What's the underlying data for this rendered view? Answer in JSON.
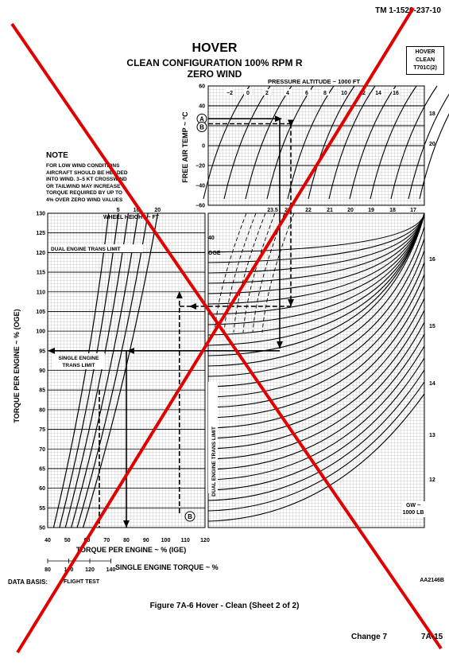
{
  "document": {
    "number": "TM 1-1520-237-10",
    "title": "HOVER",
    "subtitle": "CLEAN CONFIGURATION  100% RPM R",
    "subtitle2": "ZERO WIND",
    "tab_lines": [
      "HOVER",
      "CLEAN",
      "T701C(2)"
    ],
    "note_heading": "NOTE",
    "note_lines": [
      "FOR LOW WIND CONDITIONS",
      "AIRCRAFT SHOULD BE HEADED",
      "INTO WIND. 3–5 KT CROSSWIND",
      "OR TAILWIND MAY INCREASE",
      "TORQUE REQUIRED BY UP TO",
      "4% OVER ZERO WIND VALUES"
    ],
    "data_basis_label": "DATA BASIS:",
    "data_basis_value": "FLIGHT TEST",
    "figure_id": "AA2146B",
    "caption": "Figure 7A-6 Hover - Clean (Sheet 2 of 2)",
    "change": "Change 7",
    "page": "7A-15"
  },
  "chart_data": [
    {
      "type": "line",
      "panel": "free-air-temperature",
      "title": "PRESSURE ALTITUDE ~ 1000 FT",
      "ylabel": "FREE AIR TEMP ~ °C",
      "ylim": [
        -60,
        60
      ],
      "y_ticks": [
        "60",
        "40",
        "20",
        "0",
        "−20",
        "−40",
        "−60"
      ],
      "series_labels": [
        "−2",
        "0",
        "2",
        "4",
        "6",
        "8",
        "10",
        "12",
        "14",
        "16"
      ],
      "right_labels": [
        "18",
        "20"
      ],
      "bottom_scale_labels": [
        "23.5",
        "23",
        "22",
        "21",
        "20",
        "19",
        "18",
        "17"
      ],
      "markers": [
        "A",
        "B"
      ]
    },
    {
      "type": "line",
      "panel": "gross-weight",
      "ylabel": "GW ~",
      "ylabel2": "1000 LB",
      "right_labels": [
        "16",
        "15",
        "14",
        "13",
        "12"
      ],
      "vertical_label": "DUAL ENGINE TRANS LIMIT"
    },
    {
      "type": "line",
      "panel": "torque",
      "xlabel": "TORQUE PER ENGINE ~ % (IGE)",
      "xlabel2": "SINGLE ENGINE TORQUE ~ %",
      "ylabel": "TORQUE PER ENGINE ~ % (OGE)",
      "xlim": [
        40,
        120
      ],
      "ylim": [
        50,
        130
      ],
      "x_ticks": [
        "40",
        "50",
        "60",
        "70",
        "80",
        "90",
        "100",
        "110",
        "120"
      ],
      "y_ticks": [
        "130",
        "125",
        "120",
        "115",
        "110",
        "105",
        "100",
        "95",
        "90",
        "85",
        "80",
        "75",
        "70",
        "65",
        "60",
        "55",
        "50"
      ],
      "single_engine_ticks": [
        "80",
        "100",
        "120",
        "140"
      ],
      "wheel_height_label": "WHEEL HEIGHT ~ FT",
      "wheel_heights": [
        "5",
        "10",
        "20"
      ],
      "ref_label_40": "40",
      "ref_label_oge": "OGE",
      "dual_limit_label": "DUAL ENGINE TRANS LIMIT",
      "single_limit_label_1": "SINGLE ENGINE",
      "single_limit_label_2": "TRANS LIMIT",
      "dual_limit_value": 120,
      "single_limit_value": 95,
      "example_answer_oge": 95,
      "example_answer_ige": 80,
      "example_entry_ige": 107,
      "marker": "B"
    }
  ]
}
